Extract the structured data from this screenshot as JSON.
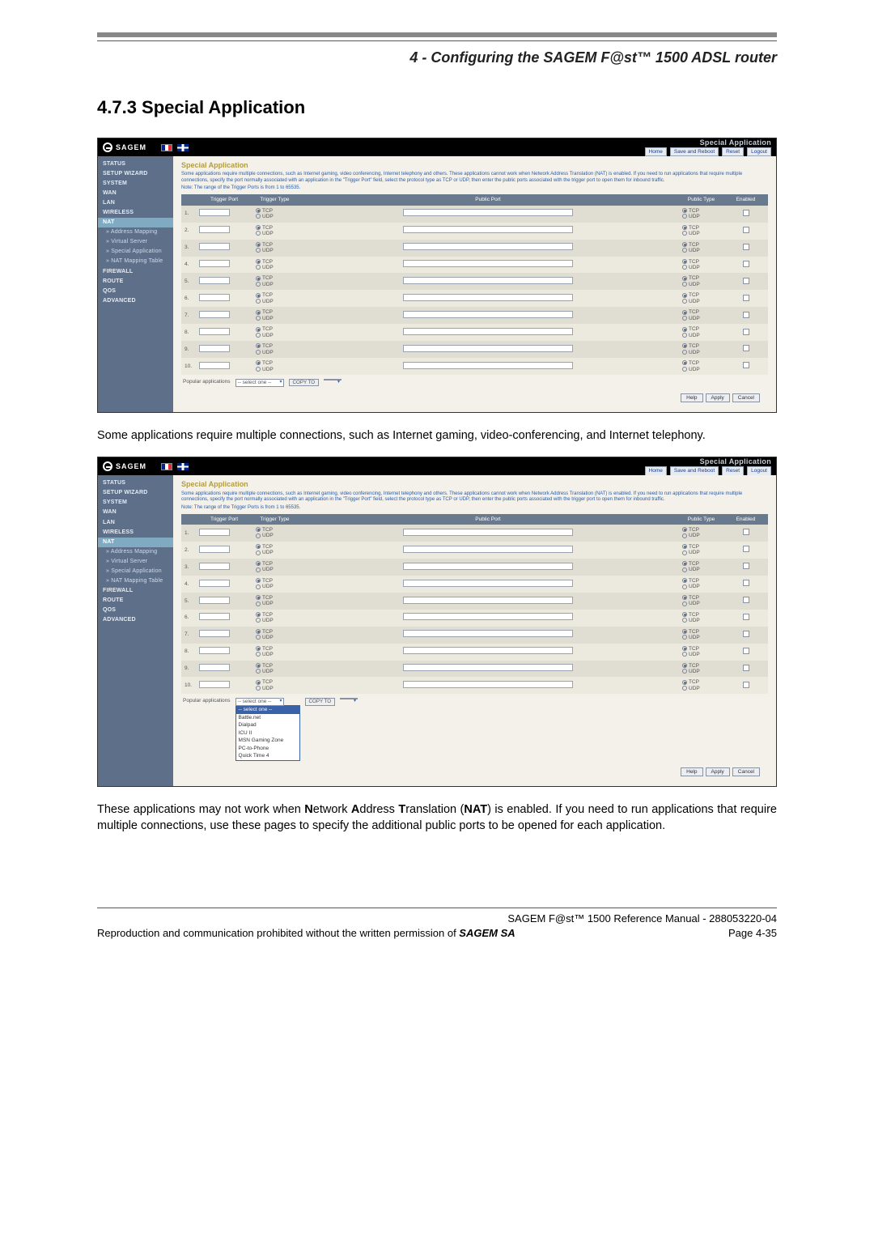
{
  "chapter_title": "4 - Configuring the SAGEM F@st™ 1500 ADSL router",
  "section_heading": "4.7.3    Special Application",
  "body_text_1": "Some applications require multiple connections, such as Internet gaming, video-conferencing, and Internet telephony.",
  "body_text_2": "These applications may not work when Network Address Translation (NAT) is enabled. If you need to run applications that require multiple connections, use these pages to specify the additional public ports to be opened for each application.",
  "footer": {
    "line1": "SAGEM F@st™ 1500 Reference Manual - 288053220-04",
    "line2_left": "Reproduction and communication prohibited without the written permission of ",
    "line2_brand": "SAGEM SA",
    "line2_right": "Page 4-35"
  },
  "router": {
    "brand": "SAGEM",
    "page_label": "Special Application",
    "header_links": [
      "Home",
      "Save and Reboot",
      "Reset",
      "Logout"
    ],
    "nav": [
      {
        "t": "item",
        "label": "STATUS"
      },
      {
        "t": "item",
        "label": "SETUP WIZARD"
      },
      {
        "t": "item",
        "label": "SYSTEM"
      },
      {
        "t": "item",
        "label": "WAN"
      },
      {
        "t": "item",
        "label": "LAN"
      },
      {
        "t": "item",
        "label": "WIRELESS"
      },
      {
        "t": "item",
        "label": "NAT",
        "active": true
      },
      {
        "t": "sub",
        "label": "» Address Mapping"
      },
      {
        "t": "sub",
        "label": "» Virtual Server"
      },
      {
        "t": "sub",
        "label": "» Special Application"
      },
      {
        "t": "sub",
        "label": "» NAT Mapping Table"
      },
      {
        "t": "item",
        "label": "FIREWALL"
      },
      {
        "t": "item",
        "label": "ROUTE"
      },
      {
        "t": "item",
        "label": "QoS"
      },
      {
        "t": "item",
        "label": "ADVANCED"
      }
    ],
    "content_title": "Special Application",
    "desc": "Some applications require multiple connections, such as Internet gaming, video conferencing, Internet telephony and others. These applications cannot work when Network Address Translation (NAT) is enabled. If you need to run applications that require multiple connections, specify the port normally associated with an application in the \"Trigger Port\" field, select the protocol type as TCP or UDP, then enter the public ports associated with the trigger port to open them for inbound traffic.",
    "note": "Note: The range of the Trigger Ports is from 1 to 65535.",
    "columns": [
      "",
      "Trigger Port",
      "Trigger Type",
      "Public Port",
      "Public Type",
      "Enabled"
    ],
    "rows": [
      {
        "n": "1."
      },
      {
        "n": "2."
      },
      {
        "n": "3."
      },
      {
        "n": "4."
      },
      {
        "n": "5."
      },
      {
        "n": "6."
      },
      {
        "n": "7."
      },
      {
        "n": "8."
      },
      {
        "n": "9."
      },
      {
        "n": "10."
      }
    ],
    "radio_tcp": "TCP",
    "radio_udp": "UDP",
    "popular_label": "Popular applications",
    "select_placeholder": "-- select one --",
    "copy_label": "COPY TO",
    "dropdown_options": [
      "-- select one --",
      "Battle.net",
      "Dialpad",
      "ICU II",
      "MSN Gaming Zone",
      "PC-to-Phone",
      "Quick Time 4"
    ],
    "footer_buttons": [
      "Help",
      "Apply",
      "Cancel"
    ]
  },
  "style": {
    "nav_bg": "#5d6f89",
    "nav_active_bg": "#80a9c2",
    "content_bg": "#f3f1ea",
    "th_bg": "#6a7a8e",
    "row_a": "#e0ddd2",
    "row_b": "#ece9df",
    "title_color": "#b29d42",
    "desc_color": "#2a5caa"
  }
}
